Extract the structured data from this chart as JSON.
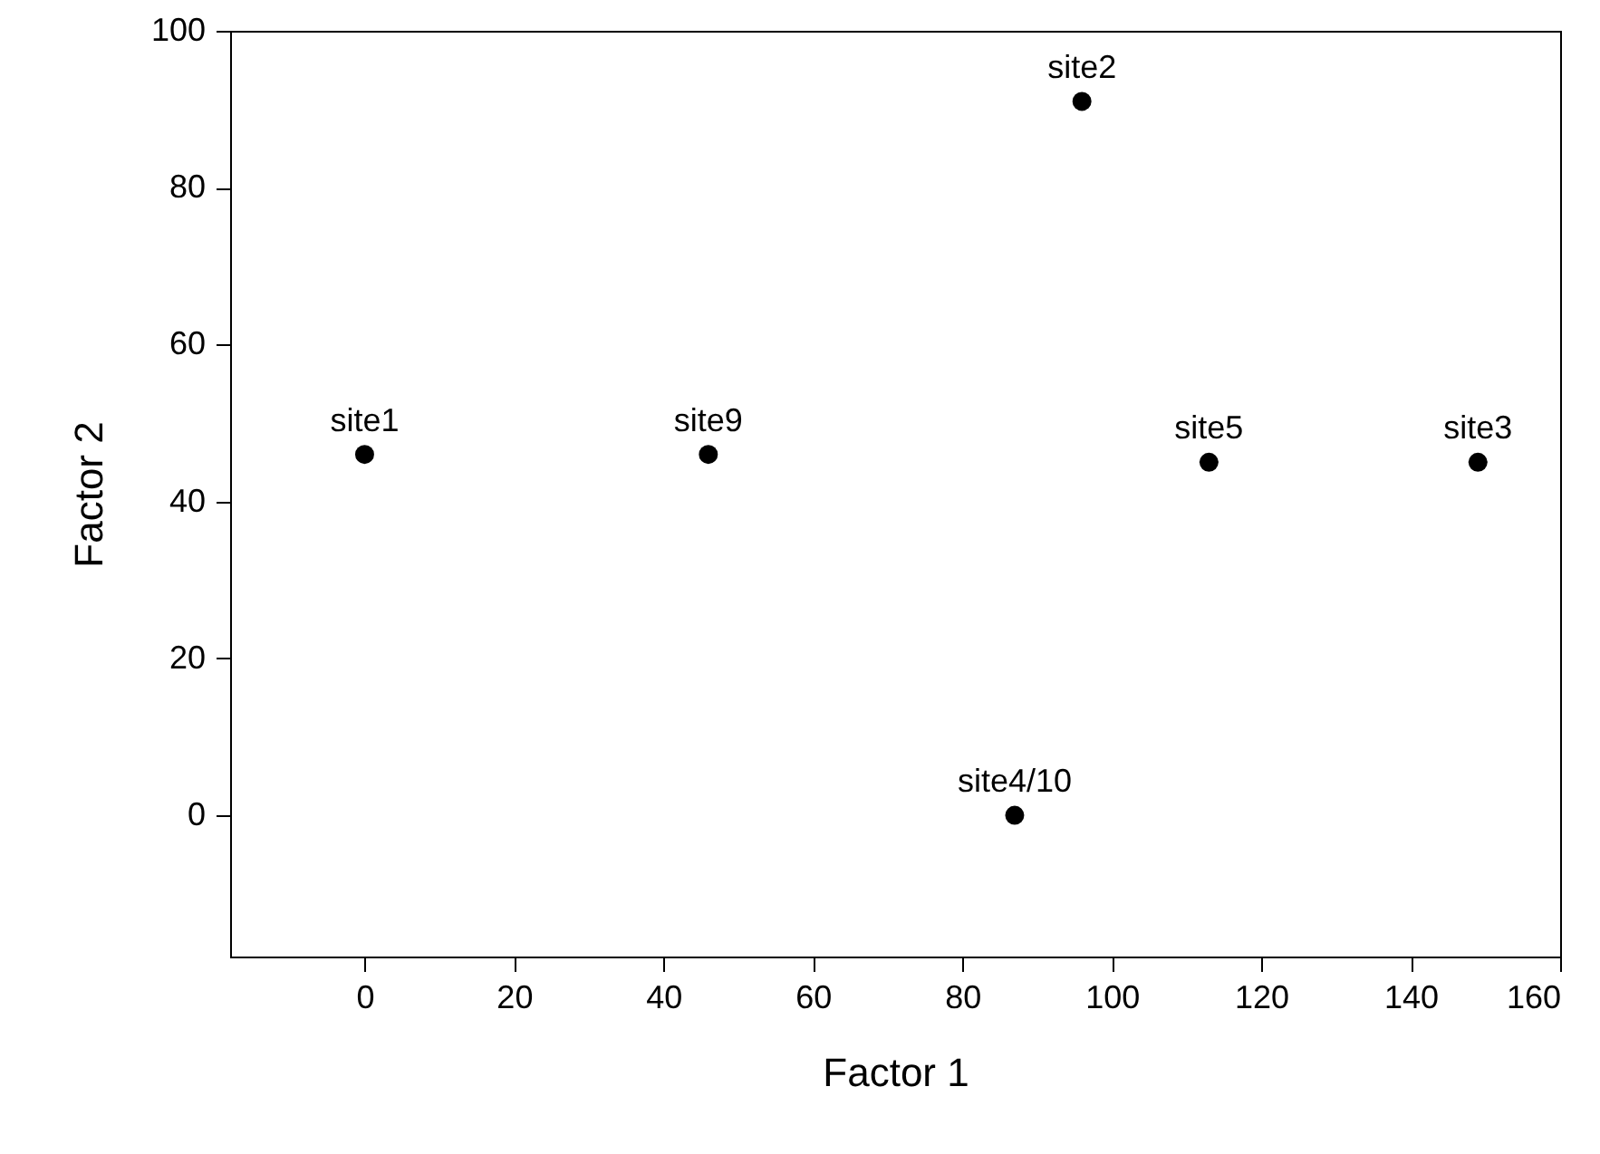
{
  "chart_data": {
    "type": "scatter",
    "xlabel": "Factor 1",
    "ylabel": "Factor 2",
    "x": [
      0,
      46,
      96,
      113,
      149,
      87
    ],
    "series": [
      {
        "color": "#000000",
        "values": [
          46,
          46,
          91,
          45,
          45,
          0
        ]
      }
    ],
    "marker": "circle",
    "annotations": [
      {
        "text": "site1",
        "x": 0,
        "y": 46
      },
      {
        "text": "site9",
        "x": 46,
        "y": 46
      },
      {
        "text": "site2",
        "x": 96,
        "y": 91
      },
      {
        "text": "site5",
        "x": 113,
        "y": 45
      },
      {
        "text": "site3",
        "x": 149,
        "y": 45
      },
      {
        "text": "site4/10",
        "x": 87,
        "y": 0
      }
    ],
    "xlim": [
      -18,
      160
    ],
    "xticks": [
      0,
      20,
      40,
      60,
      80,
      100,
      120,
      140,
      160
    ],
    "ylim": [
      -18,
      100
    ],
    "yticks": [
      0,
      20,
      40,
      60,
      80,
      100
    ],
    "grid": false
  }
}
